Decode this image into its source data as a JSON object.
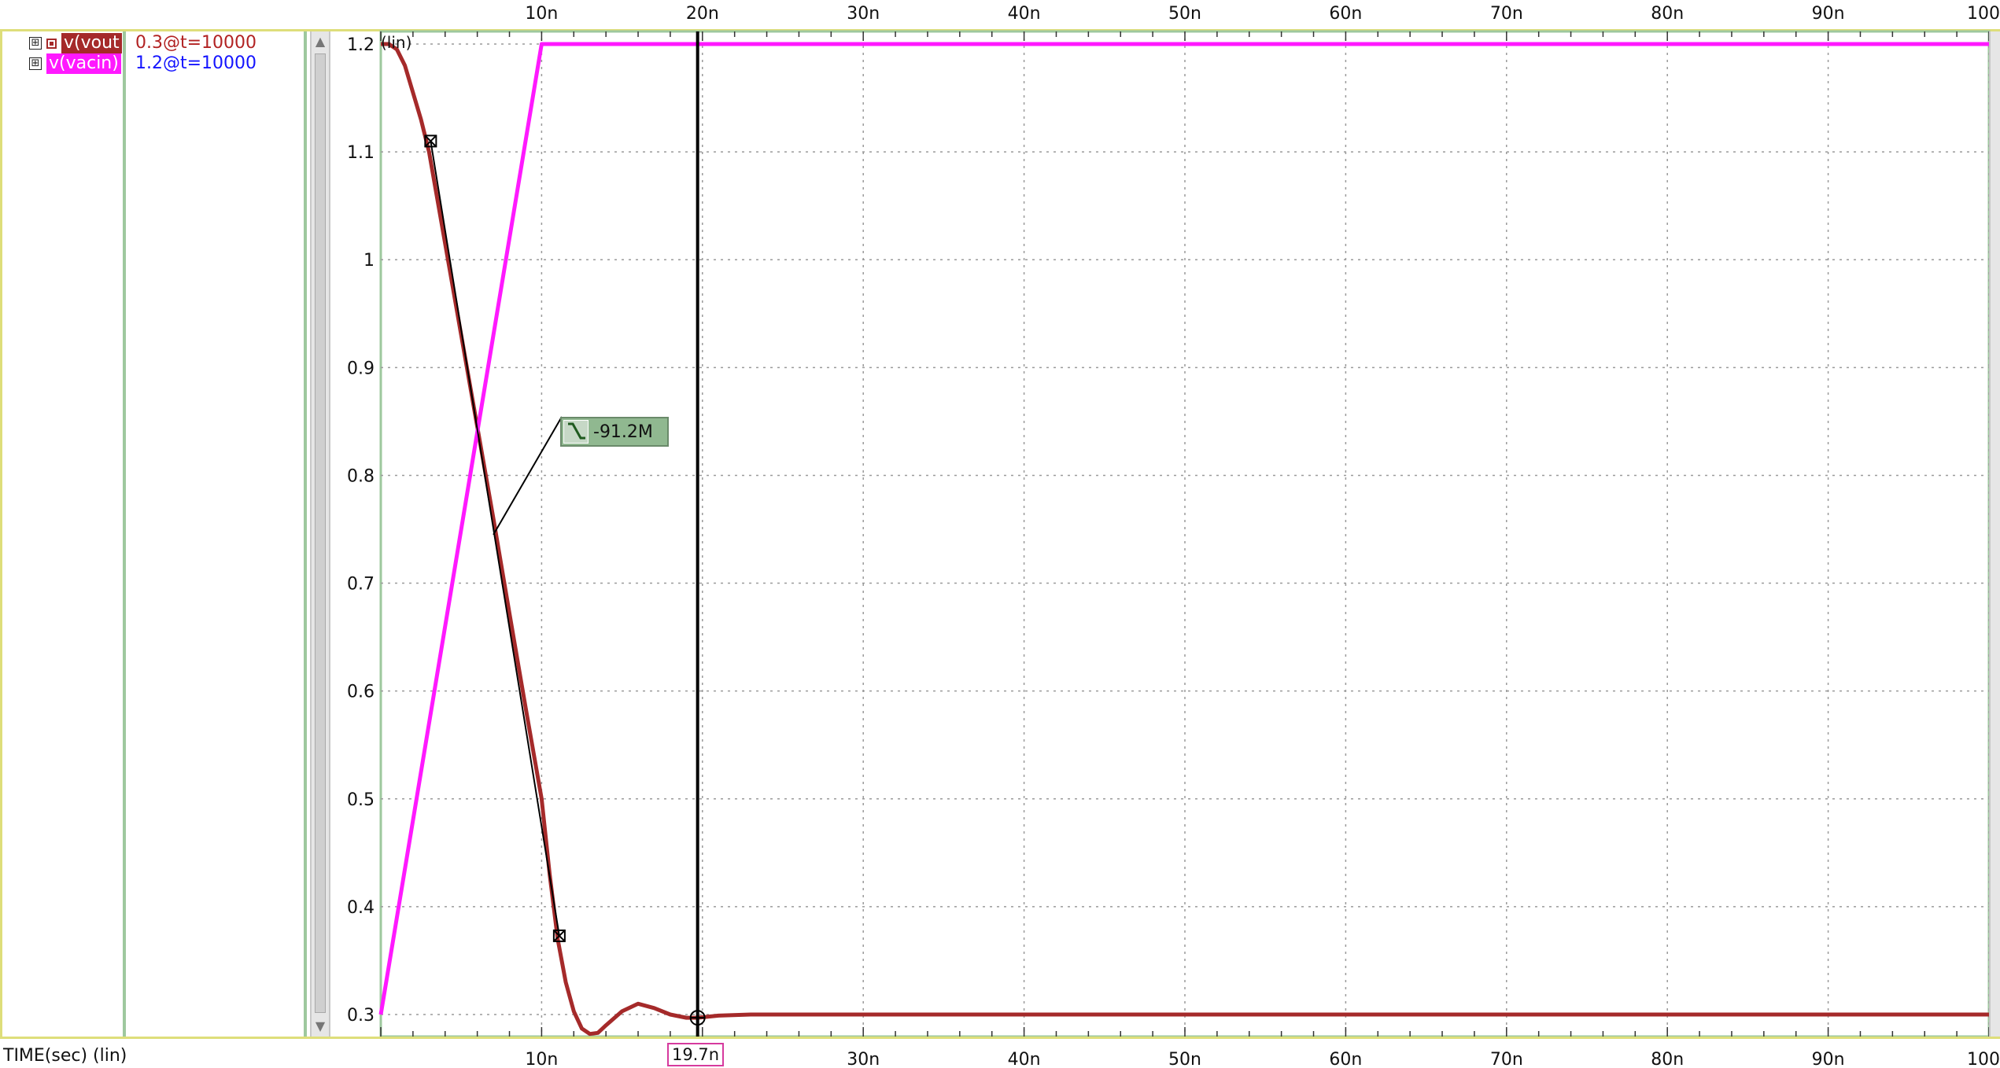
{
  "signals": [
    {
      "name": "v(vout",
      "value_label": "0.3@t=10000",
      "color": "#a52a2a",
      "value_color": "#b22222",
      "expander": "⊞",
      "marker": "selected-marker"
    },
    {
      "name": "v(vacin)",
      "value_label": "1.2@t=10000",
      "color": "#ff19ff",
      "value_color": "#1414ff",
      "expander": "⊞"
    }
  ],
  "x_axis_title": "TIME(sec) (lin)",
  "y_scale_label": "(lin)",
  "cursor": {
    "label": "19.7n",
    "time_ns": 19.7,
    "color": "#000000"
  },
  "slope_annotation": {
    "text": "-91.2M",
    "icon": "falling-edge-icon"
  },
  "chart_data": {
    "type": "line",
    "xlabel": "TIME(sec) (lin)",
    "ylabel": "(lin)",
    "xlim": [
      0,
      100
    ],
    "ylim": [
      0.28,
      1.21
    ],
    "x_unit": "ns",
    "x_ticks": [
      10,
      20,
      30,
      40,
      50,
      60,
      70,
      80,
      90,
      100
    ],
    "x_tick_labels": [
      "10n",
      "20n",
      "30n",
      "40n",
      "50n",
      "60n",
      "70n",
      "80n",
      "90n",
      "100n"
    ],
    "y_ticks": [
      0.3,
      0.4,
      0.5,
      0.6,
      0.7,
      0.8,
      0.9,
      1.0,
      1.1,
      1.2
    ],
    "y_tick_labels": [
      "0.3",
      "0.4",
      "0.5",
      "0.6",
      "0.7",
      "0.8",
      "0.9",
      "1",
      "1.1",
      "1.2"
    ],
    "grid": true,
    "series": [
      {
        "name": "v(vout",
        "color": "#a52a2a",
        "x": [
          0,
          0.5,
          1,
          1.5,
          2,
          2.5,
          3,
          4,
          5,
          6,
          7,
          8,
          9,
          10,
          10.5,
          11,
          11.5,
          12,
          12.5,
          13,
          13.5,
          14,
          15,
          16,
          17,
          18,
          19,
          19.7,
          21,
          23,
          100
        ],
        "y": [
          1.2,
          1.2,
          1.195,
          1.18,
          1.155,
          1.13,
          1.1,
          1.015,
          0.93,
          0.845,
          0.76,
          0.672,
          0.585,
          0.5,
          0.43,
          0.37,
          0.33,
          0.303,
          0.287,
          0.282,
          0.283,
          0.29,
          0.303,
          0.31,
          0.306,
          0.3,
          0.297,
          0.297,
          0.299,
          0.3,
          0.3
        ]
      },
      {
        "name": "v(vacin)",
        "color": "#ff19ff",
        "x": [
          0,
          10,
          100
        ],
        "y": [
          0.3,
          1.2,
          1.2
        ]
      }
    ],
    "markers": [
      {
        "series": "v(vout",
        "x": 3.1,
        "y": 1.11
      },
      {
        "series": "v(vout",
        "x": 11.1,
        "y": 0.373
      },
      {
        "series": "v(vout",
        "x": 19.7,
        "y": 0.297
      }
    ]
  }
}
